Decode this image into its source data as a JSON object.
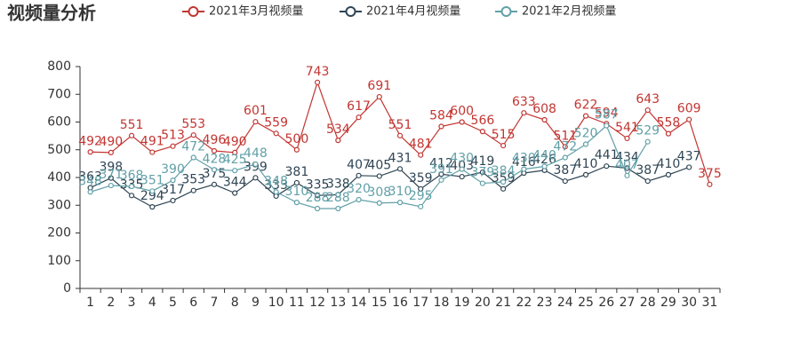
{
  "chart_data": {
    "type": "line",
    "title": "视频量分析",
    "categories": [
      "1",
      "2",
      "3",
      "4",
      "5",
      "6",
      "7",
      "8",
      "9",
      "10",
      "11",
      "12",
      "13",
      "14",
      "15",
      "16",
      "17",
      "18",
      "19",
      "20",
      "21",
      "22",
      "23",
      "24",
      "25",
      "26",
      "27",
      "28",
      "29",
      "30",
      "31"
    ],
    "series": [
      {
        "name": "2021年3月视频量",
        "color": "#c23531",
        "values": [
          492,
          490,
          551,
          491,
          513,
          553,
          496,
          490,
          601,
          559,
          500,
          743,
          534,
          617,
          691,
          551,
          481,
          584,
          600,
          566,
          515,
          633,
          608,
          511,
          622,
          594,
          541,
          643,
          558,
          609,
          375
        ]
      },
      {
        "name": "2021年4月视频量",
        "color": "#2f4554",
        "values": [
          363,
          398,
          335,
          294,
          317,
          353,
          375,
          344,
          399,
          333,
          381,
          335,
          338,
          407,
          405,
          431,
          359,
          412,
          403,
          419,
          359,
          416,
          426,
          387,
          410,
          441,
          434,
          387,
          410,
          437,
          null
        ]
      },
      {
        "name": "2021年2月视频量",
        "color": "#61a0a8",
        "values": [
          348,
          371,
          368,
          351,
          390,
          472,
          428,
          425,
          448,
          348,
          310,
          288,
          288,
          320,
          308,
          310,
          295,
          391,
          430,
          379,
          384,
          430,
          440,
          472,
          520,
          587,
          407,
          529,
          null,
          null,
          null
        ]
      }
    ],
    "ylim": [
      0,
      800
    ],
    "yticks": [
      0,
      100,
      200,
      300,
      400,
      500,
      600,
      700,
      800
    ],
    "grid": false
  }
}
